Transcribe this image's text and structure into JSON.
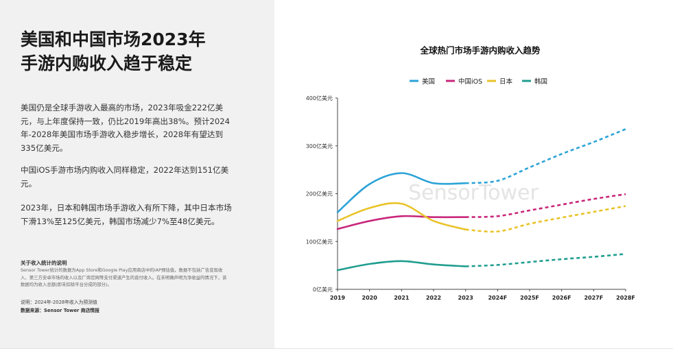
{
  "left_panel": {
    "headline": [
      "美国和中国市场2023年",
      "手游内购收入趋于稳定"
    ],
    "paragraphs": [
      "美国仍是全球手游收入最高的市场，2023年吸金222亿美元，与上年度保持一致，仍比2019年高出38%。预计2024年-2028年美国市场手游收入稳步增长，2028年有望达到335亿美元。",
      "中国iOS手游市场内购收入同样稳定，2022年达到151亿美元。",
      "2023年，日本和韩国市场手游收入有所下降，其中日本市场下滑13%至125亿美元，韩国市场减少7%至48亿美元。"
    ],
    "note_title": "关于收入统计的说明",
    "note_body": "Sensor Tower统计的数据为App Store和Google Play应用商店中的IAP预估值，数据不包括广告变现收入、第三方安卓市场的收入以及厂商官网等支付渠道产生的直付收入。在未明确声明为净收益的情况下，该数据均为收入总额(即未扣除平台分成的部分)。",
    "note_line": "说明：2024年-2028年收入为预测值",
    "source_line": "数据来源：Sensor Tower 商店情报"
  },
  "watermark": "SensorTower",
  "chart_data": {
    "type": "line",
    "title": "全球热门市场手游内购收入趋势",
    "categories": [
      "2019",
      "2020",
      "2021",
      "2022",
      "2023",
      "2024F",
      "2025F",
      "2026F",
      "2027F",
      "2028F"
    ],
    "actual_through": "2023",
    "forecast_from": "2023",
    "ylim": [
      0,
      400
    ],
    "yticks": [
      0,
      100,
      200,
      300,
      400
    ],
    "ytick_labels": [
      "0亿美元",
      "100亿美元",
      "200亿美元",
      "300亿美元",
      "400亿美元"
    ],
    "legend_position": "top",
    "grid": false,
    "series": [
      {
        "name": "美国",
        "color": "#2ba3d7",
        "values": [
          161,
          220,
          243,
          222,
          222,
          227,
          255,
          283,
          308,
          335
        ]
      },
      {
        "name": "中国iOS",
        "color": "#c8267a",
        "values": [
          126,
          143,
          153,
          151,
          151,
          153,
          165,
          177,
          189,
          199
        ]
      },
      {
        "name": "日本",
        "color": "#e9c328",
        "values": [
          143,
          170,
          179,
          143,
          125,
          121,
          137,
          150,
          162,
          174
        ]
      },
      {
        "name": "韩国",
        "color": "#1f9d8f",
        "values": [
          40,
          53,
          59,
          52,
          48,
          51,
          57,
          63,
          68,
          74
        ]
      }
    ]
  }
}
